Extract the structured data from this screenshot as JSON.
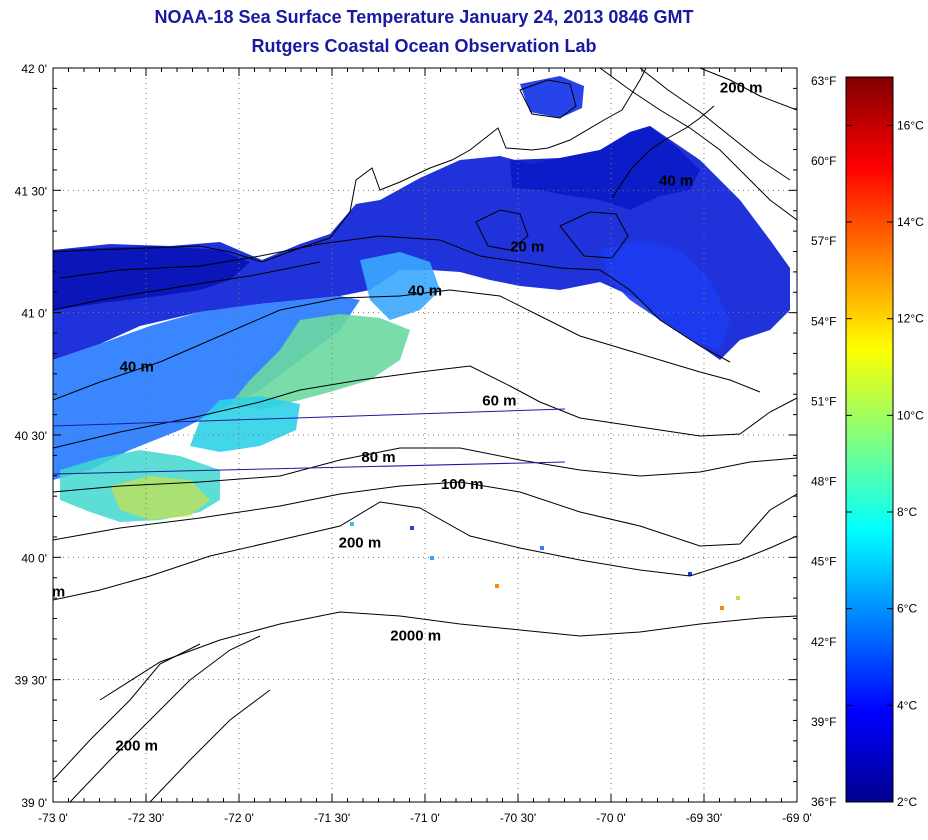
{
  "title": "NOAA-18 Sea Surface Temperature January 24, 2013 0846 GMT",
  "subtitle": "Rutgers Coastal Ocean Observation Lab",
  "map": {
    "lon_range": [
      -73.0,
      -69.0
    ],
    "lat_range": [
      39.0,
      42.0
    ],
    "grid": "dotted",
    "x_ticks": [
      "-73 0'",
      "-72 30'",
      "-72 0'",
      "-71 30'",
      "-71 0'",
      "-70 30'",
      "-70 0'",
      "-69 30'",
      "-69 0'"
    ],
    "y_ticks": [
      "42 0'",
      "41 30'",
      "41 0'",
      "40 30'",
      "40 0'",
      "39 30'",
      "39 0'"
    ],
    "fahrenheit_ticks": [
      "63°F",
      "60°F",
      "57°F",
      "54°F",
      "51°F",
      "48°F",
      "45°F",
      "42°F",
      "39°F",
      "36°F"
    ],
    "contour_labels": [
      {
        "text": "200 m",
        "lon": -69.3,
        "lat": 41.9
      },
      {
        "text": "40 m",
        "lon": -69.65,
        "lat": 41.52
      },
      {
        "text": "20 m",
        "lon": -70.45,
        "lat": 41.25
      },
      {
        "text": "40 m",
        "lon": -71.0,
        "lat": 41.07
      },
      {
        "text": "40 m",
        "lon": -72.55,
        "lat": 40.76
      },
      {
        "text": "60 m",
        "lon": -70.6,
        "lat": 40.62
      },
      {
        "text": "80 m",
        "lon": -71.25,
        "lat": 40.39
      },
      {
        "text": "100 m",
        "lon": -70.8,
        "lat": 40.28
      },
      {
        "text": "200 m",
        "lon": -71.35,
        "lat": 40.04
      },
      {
        "text": "2000 m",
        "lon": -71.05,
        "lat": 39.66
      },
      {
        "text": "200 m",
        "lon": -72.55,
        "lat": 39.21
      },
      {
        "text": "m",
        "lon": -72.97,
        "lat": 39.84
      }
    ]
  },
  "colorbar": {
    "min_c": 2,
    "max_c": 17,
    "celsius_ticks": [
      "16°C",
      "14°C",
      "12°C",
      "10°C",
      "8°C",
      "6°C",
      "4°C",
      "2°C"
    ],
    "colors": [
      "#00008f",
      "#0000ff",
      "#0080ff",
      "#00ffff",
      "#80ff80",
      "#ffff00",
      "#ff8000",
      "#ff0000",
      "#800000"
    ]
  }
}
